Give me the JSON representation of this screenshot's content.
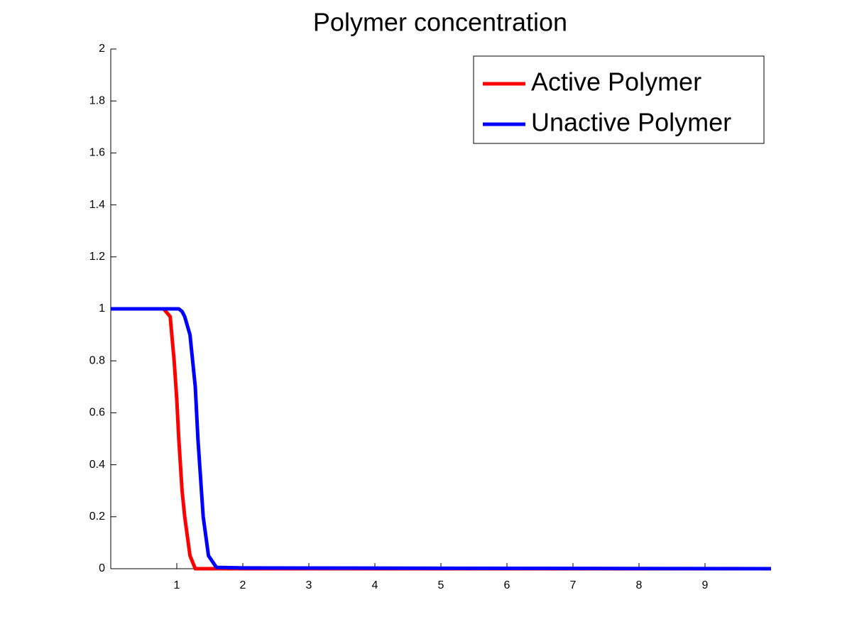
{
  "chart_data": {
    "type": "line",
    "title": "Polymer concentration",
    "x": [
      0,
      0.8,
      0.9,
      0.96,
      1.0,
      1.03,
      1.08,
      1.12,
      1.2,
      1.28,
      1.32,
      1.4,
      1.48,
      1.6,
      2,
      10
    ],
    "series": [
      {
        "name": "Active Polymer",
        "color": "#ff0000",
        "values": [
          1,
          1,
          0.97,
          0.8,
          0.65,
          0.5,
          0.3,
          0.2,
          0.05,
          0,
          0,
          0,
          0,
          0,
          0,
          0
        ]
      },
      {
        "name": "Unactive Polymer",
        "color": "#0000ff",
        "values": [
          1,
          1,
          1,
          1,
          1,
          1,
          0.99,
          0.97,
          0.9,
          0.7,
          0.5,
          0.2,
          0.05,
          0.005,
          0.003,
          0
        ]
      }
    ],
    "xlim": [
      0,
      10
    ],
    "xticks": [
      1,
      2,
      3,
      4,
      5,
      6,
      7,
      8,
      9
    ],
    "ylim": [
      0,
      2
    ],
    "yticks": [
      0,
      0.2,
      0.4,
      0.6,
      0.8,
      1,
      1.2,
      1.4,
      1.6,
      1.8,
      2
    ],
    "grid": false,
    "legend": "upper-right"
  }
}
